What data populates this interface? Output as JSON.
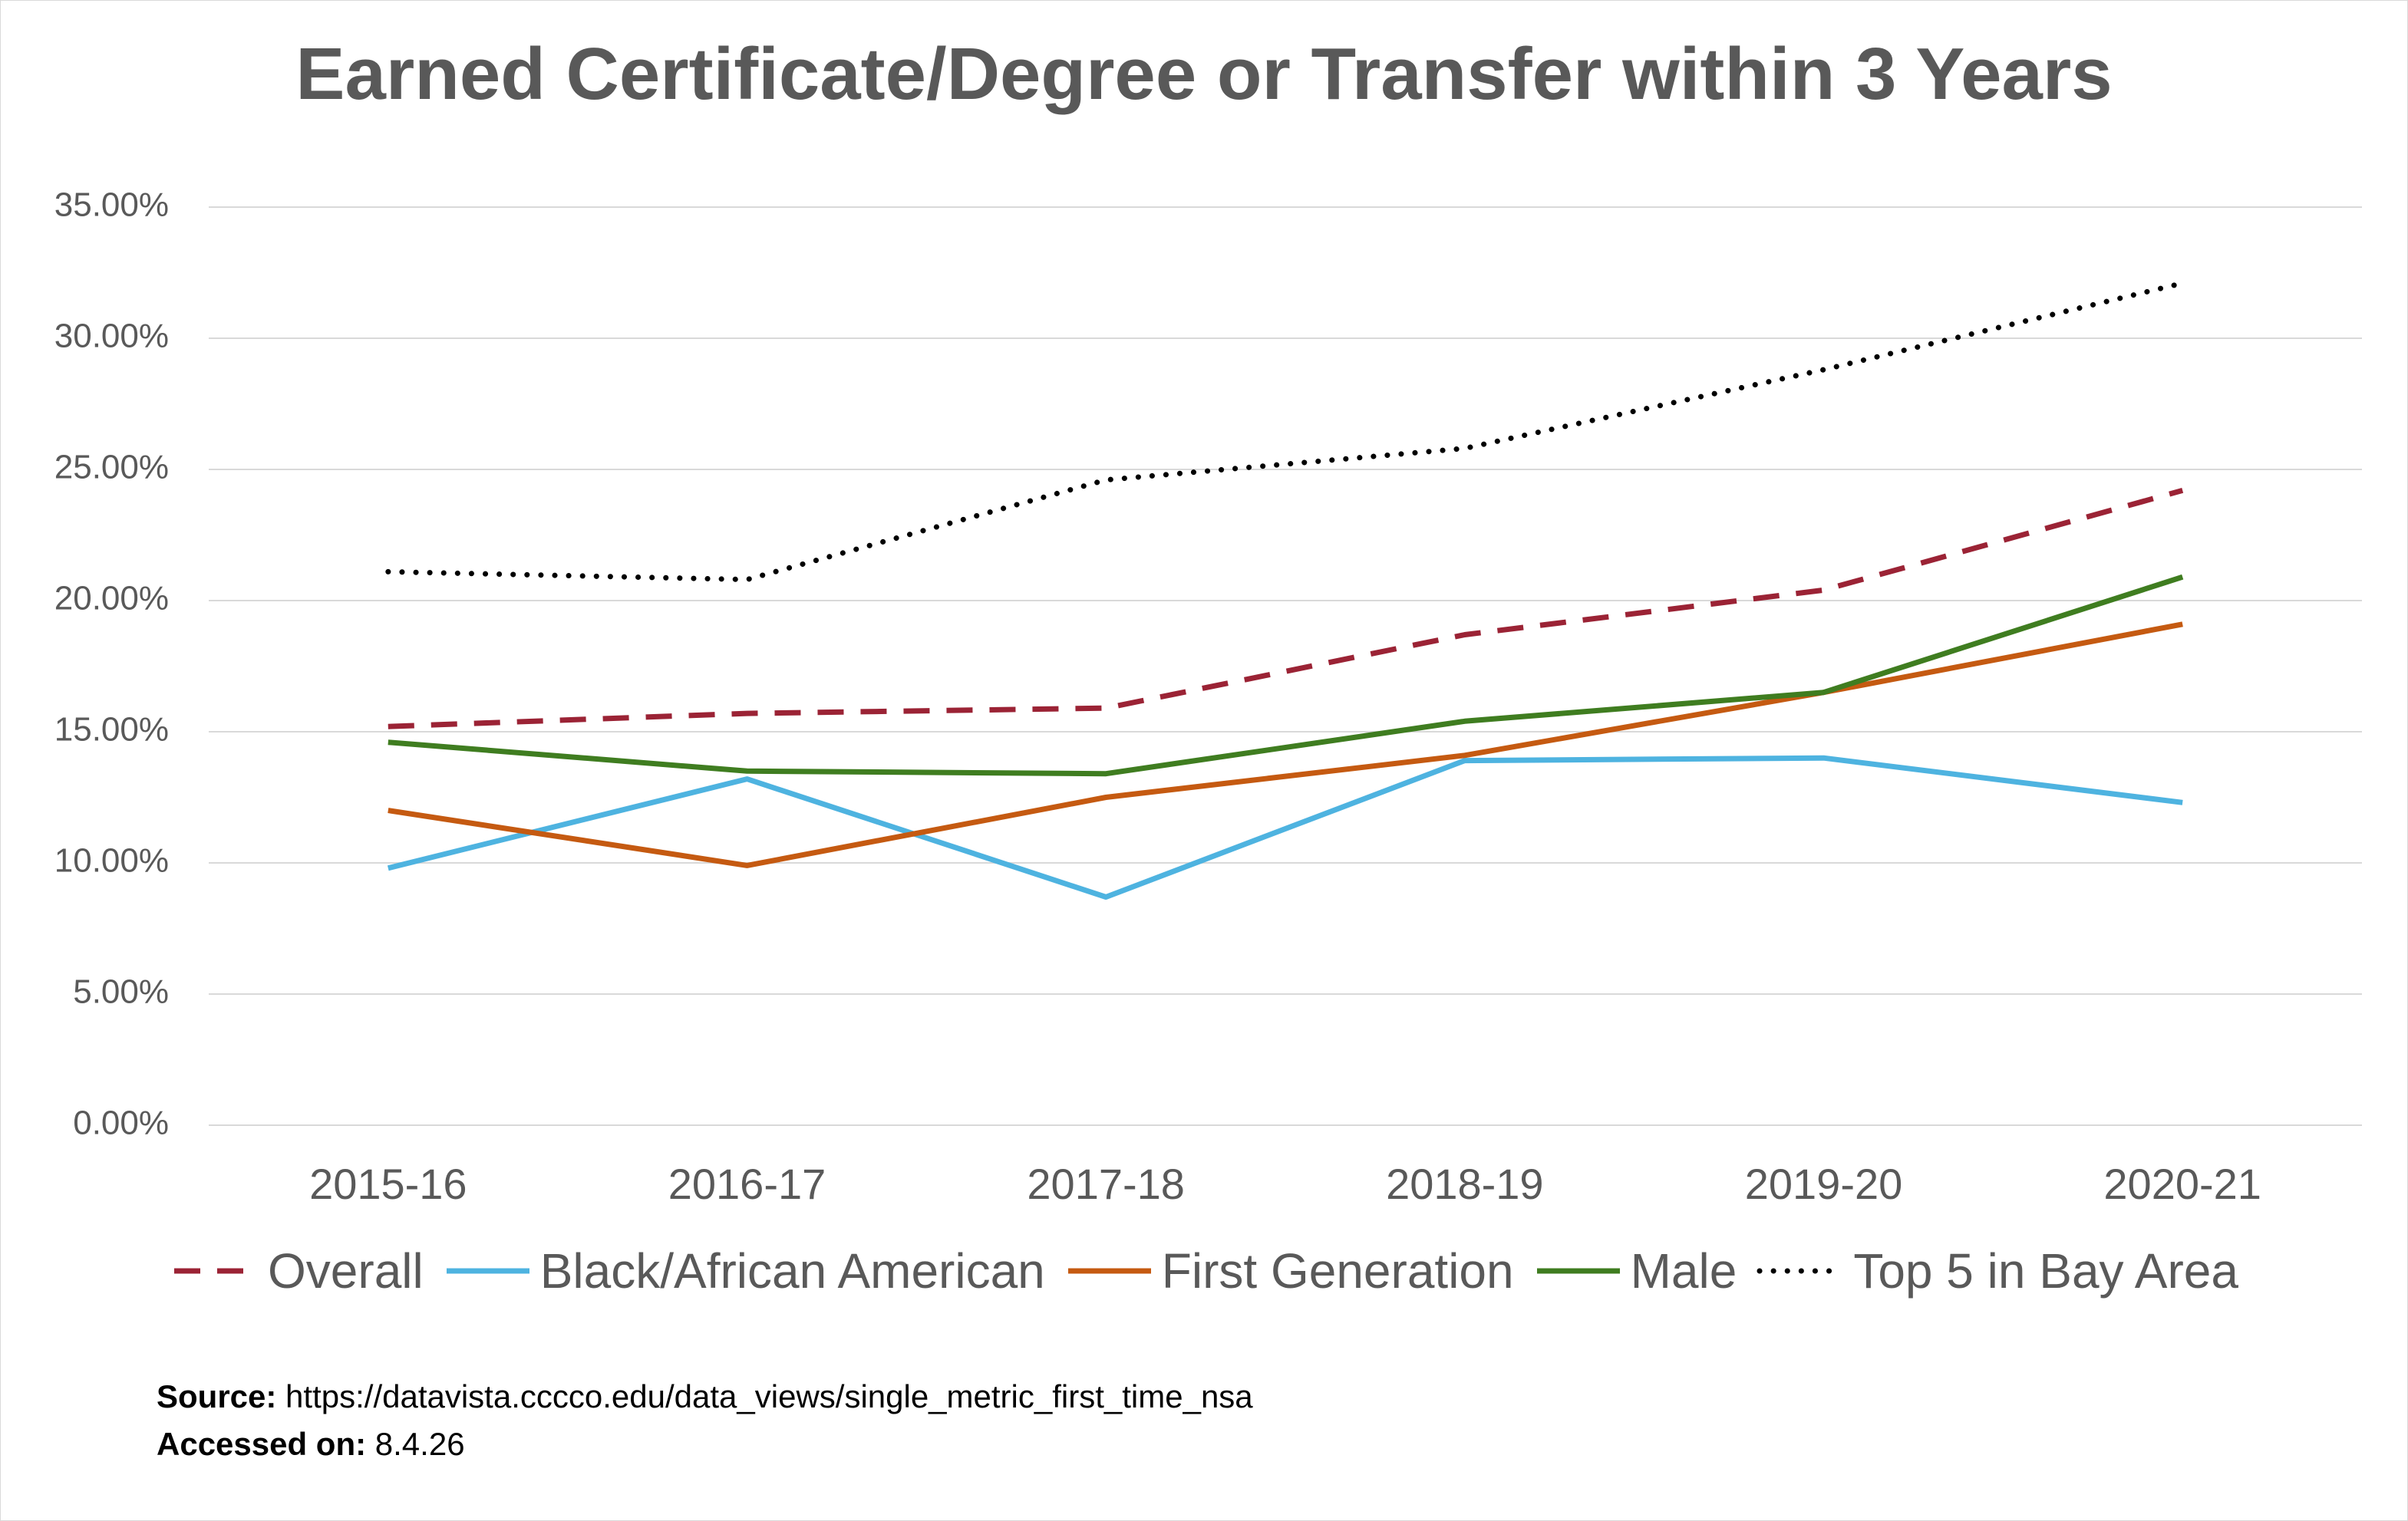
{
  "chart_data": {
    "type": "line",
    "title": "Earned Certificate/Degree or Transfer within 3 Years",
    "xlabel": "",
    "ylabel": "",
    "categories": [
      "2015-16",
      "2016-17",
      "2017-18",
      "2018-19",
      "2019-20",
      "2020-21"
    ],
    "ylim": [
      0,
      35
    ],
    "yticks": [
      "0.00%",
      "5.00%",
      "10.00%",
      "15.00%",
      "20.00%",
      "25.00%",
      "30.00%",
      "35.00%"
    ],
    "grid": true,
    "legend_position": "bottom",
    "series": [
      {
        "name": "Overall",
        "values": [
          15.2,
          15.7,
          15.9,
          18.7,
          20.4,
          24.2
        ],
        "color": "#9b2335",
        "style": "dashed"
      },
      {
        "name": "Black/African American",
        "values": [
          9.8,
          13.2,
          8.7,
          13.9,
          14.0,
          12.3
        ],
        "color": "#4eb3e0",
        "style": "solid"
      },
      {
        "name": "First Generation",
        "values": [
          12.0,
          9.9,
          12.5,
          14.1,
          16.5,
          19.1
        ],
        "color": "#c55a11",
        "style": "solid"
      },
      {
        "name": "Male",
        "values": [
          14.6,
          13.5,
          13.4,
          15.4,
          16.5,
          20.9
        ],
        "color": "#3f7d20",
        "style": "solid"
      },
      {
        "name": "Top 5 in Bay Area",
        "values": [
          21.1,
          20.8,
          24.6,
          25.8,
          28.8,
          32.1
        ],
        "color": "#000000",
        "style": "dotted"
      }
    ]
  },
  "source": {
    "source_label": "Source:",
    "source_value": "https://datavista.cccco.edu/data_views/single_metric_first_time_nsa",
    "accessed_label": "Accessed on:",
    "accessed_value": "8.4.26"
  },
  "colors": {
    "title": "#595959",
    "grid": "#d9d9d9",
    "text": "#595959"
  }
}
